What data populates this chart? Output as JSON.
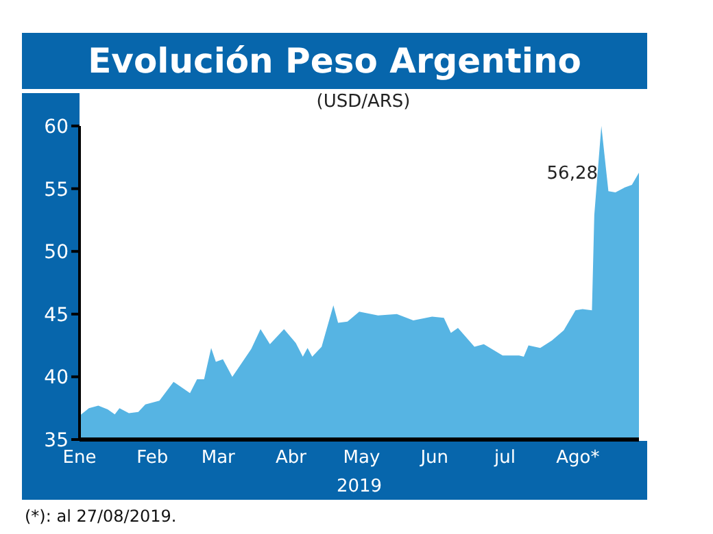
{
  "chart_data": {
    "type": "area",
    "title": "Evolución Peso Argentino",
    "subtitle": "(USD/ARS)",
    "xlabel": "2019",
    "x": [
      "2019-01-01",
      "2019-01-05",
      "2019-01-09",
      "2019-01-13",
      "2019-01-16",
      "2019-01-18",
      "2019-01-22",
      "2019-01-26",
      "2019-01-29",
      "2019-02-04",
      "2019-02-10",
      "2019-02-17",
      "2019-02-20",
      "2019-02-23",
      "2019-02-26",
      "2019-02-28",
      "2019-03-03",
      "2019-03-07",
      "2019-03-15",
      "2019-03-19",
      "2019-03-23",
      "2019-03-29",
      "2019-04-03",
      "2019-04-06",
      "2019-04-08",
      "2019-04-10",
      "2019-04-14",
      "2019-04-19",
      "2019-04-21",
      "2019-04-25",
      "2019-04-30",
      "2019-05-08",
      "2019-05-16",
      "2019-05-23",
      "2019-05-31",
      "2019-06-05",
      "2019-06-08",
      "2019-06-11",
      "2019-06-18",
      "2019-06-22",
      "2019-06-30",
      "2019-07-07",
      "2019-07-09",
      "2019-07-11",
      "2019-07-16",
      "2019-07-21",
      "2019-07-26",
      "2019-07-31",
      "2019-08-03",
      "2019-08-07",
      "2019-08-08",
      "2019-08-11",
      "2019-08-14",
      "2019-08-17",
      "2019-08-21",
      "2019-08-24",
      "2019-08-27"
    ],
    "series": [
      {
        "color": "#56b4e3",
        "values": [
          36.9,
          37.5,
          37.7,
          37.4,
          37.0,
          37.5,
          37.1,
          37.2,
          37.8,
          38.1,
          39.6,
          38.7,
          39.8,
          39.8,
          42.3,
          41.2,
          41.4,
          40.0,
          42.2,
          43.8,
          42.6,
          43.8,
          42.7,
          41.6,
          42.3,
          41.6,
          42.4,
          45.7,
          44.3,
          44.4,
          45.2,
          44.9,
          45.0,
          44.5,
          44.8,
          44.7,
          43.5,
          43.9,
          42.4,
          42.6,
          41.7,
          41.7,
          41.6,
          42.5,
          42.3,
          42.9,
          43.7,
          45.3,
          45.4,
          45.3,
          52.9,
          60.0,
          54.8,
          54.7,
          55.1,
          55.3,
          56.28
        ]
      }
    ],
    "xlim": [
      "2019-01-01",
      "2019-08-27"
    ],
    "xticks": [
      {
        "value": "2019-01-01",
        "label": "Ene"
      },
      {
        "value": "2019-02-01",
        "label": "Feb"
      },
      {
        "value": "2019-03-01",
        "label": "Mar"
      },
      {
        "value": "2019-04-01",
        "label": "Abr"
      },
      {
        "value": "2019-05-01",
        "label": "May"
      },
      {
        "value": "2019-06-01",
        "label": "Jun"
      },
      {
        "value": "2019-07-01",
        "label": "jul"
      },
      {
        "value": "2019-08-01",
        "label": "Ago*"
      }
    ],
    "ylim": [
      35,
      60
    ],
    "yticks": [
      35,
      40,
      45,
      50,
      55,
      60
    ],
    "grid": false,
    "annotations": [
      {
        "text": "56,28",
        "x": "2019-08-27",
        "y": 56.28
      },
      "(*): al 27/08/2019."
    ]
  }
}
